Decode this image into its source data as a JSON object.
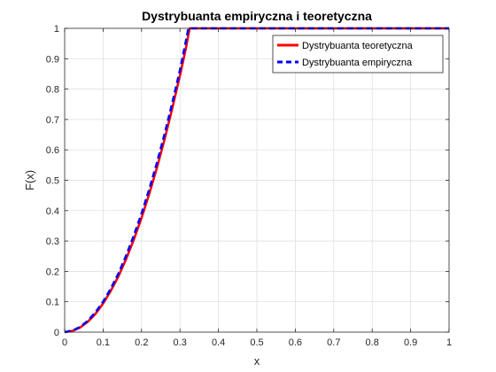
{
  "chart_data": {
    "type": "line",
    "title": "Dystrybuanta empiryczna i teoretyczna",
    "xlabel": "x",
    "ylabel": "F(x)",
    "xlim": [
      0,
      1
    ],
    "ylim": [
      0,
      1
    ],
    "x_ticks": [
      "0",
      "0.1",
      "0.2",
      "0.3",
      "0.4",
      "0.5",
      "0.6",
      "0.7",
      "0.8",
      "0.9",
      "1"
    ],
    "y_ticks": [
      "0",
      "0.1",
      "0.2",
      "0.3",
      "0.4",
      "0.5",
      "0.6",
      "0.7",
      "0.8",
      "0.9",
      "1"
    ],
    "grid": true,
    "legend_position": "top-right",
    "series": [
      {
        "name": "Dystrybuanta teoretyczna",
        "color": "#ff0000",
        "style": "solid",
        "x": [
          0,
          0.02,
          0.04,
          0.06,
          0.08,
          0.1,
          0.12,
          0.14,
          0.16,
          0.18,
          0.2,
          0.22,
          0.24,
          0.26,
          0.28,
          0.3,
          0.315,
          0.325,
          0.35,
          0.4,
          0.5,
          0.6,
          0.7,
          0.8,
          0.9,
          1
        ],
        "y": [
          0,
          0.004,
          0.015,
          0.034,
          0.06,
          0.094,
          0.136,
          0.184,
          0.241,
          0.305,
          0.376,
          0.455,
          0.541,
          0.635,
          0.737,
          0.845,
          0.932,
          1,
          1,
          1,
          1,
          1,
          1,
          1,
          1,
          1
        ]
      },
      {
        "name": "Dystrybuanta empiryczna",
        "color": "#0000ff",
        "style": "dashed",
        "x": [
          0,
          0.02,
          0.04,
          0.06,
          0.08,
          0.1,
          0.12,
          0.14,
          0.16,
          0.18,
          0.2,
          0.22,
          0.24,
          0.26,
          0.28,
          0.3,
          0.315,
          0.322,
          0.35,
          0.4,
          0.5,
          0.6,
          0.7,
          0.8,
          0.9,
          1
        ],
        "y": [
          0,
          0.005,
          0.017,
          0.037,
          0.065,
          0.1,
          0.143,
          0.193,
          0.252,
          0.318,
          0.39,
          0.47,
          0.557,
          0.652,
          0.754,
          0.862,
          0.955,
          1,
          1,
          1,
          1,
          1,
          1,
          1,
          1,
          1
        ]
      }
    ]
  }
}
